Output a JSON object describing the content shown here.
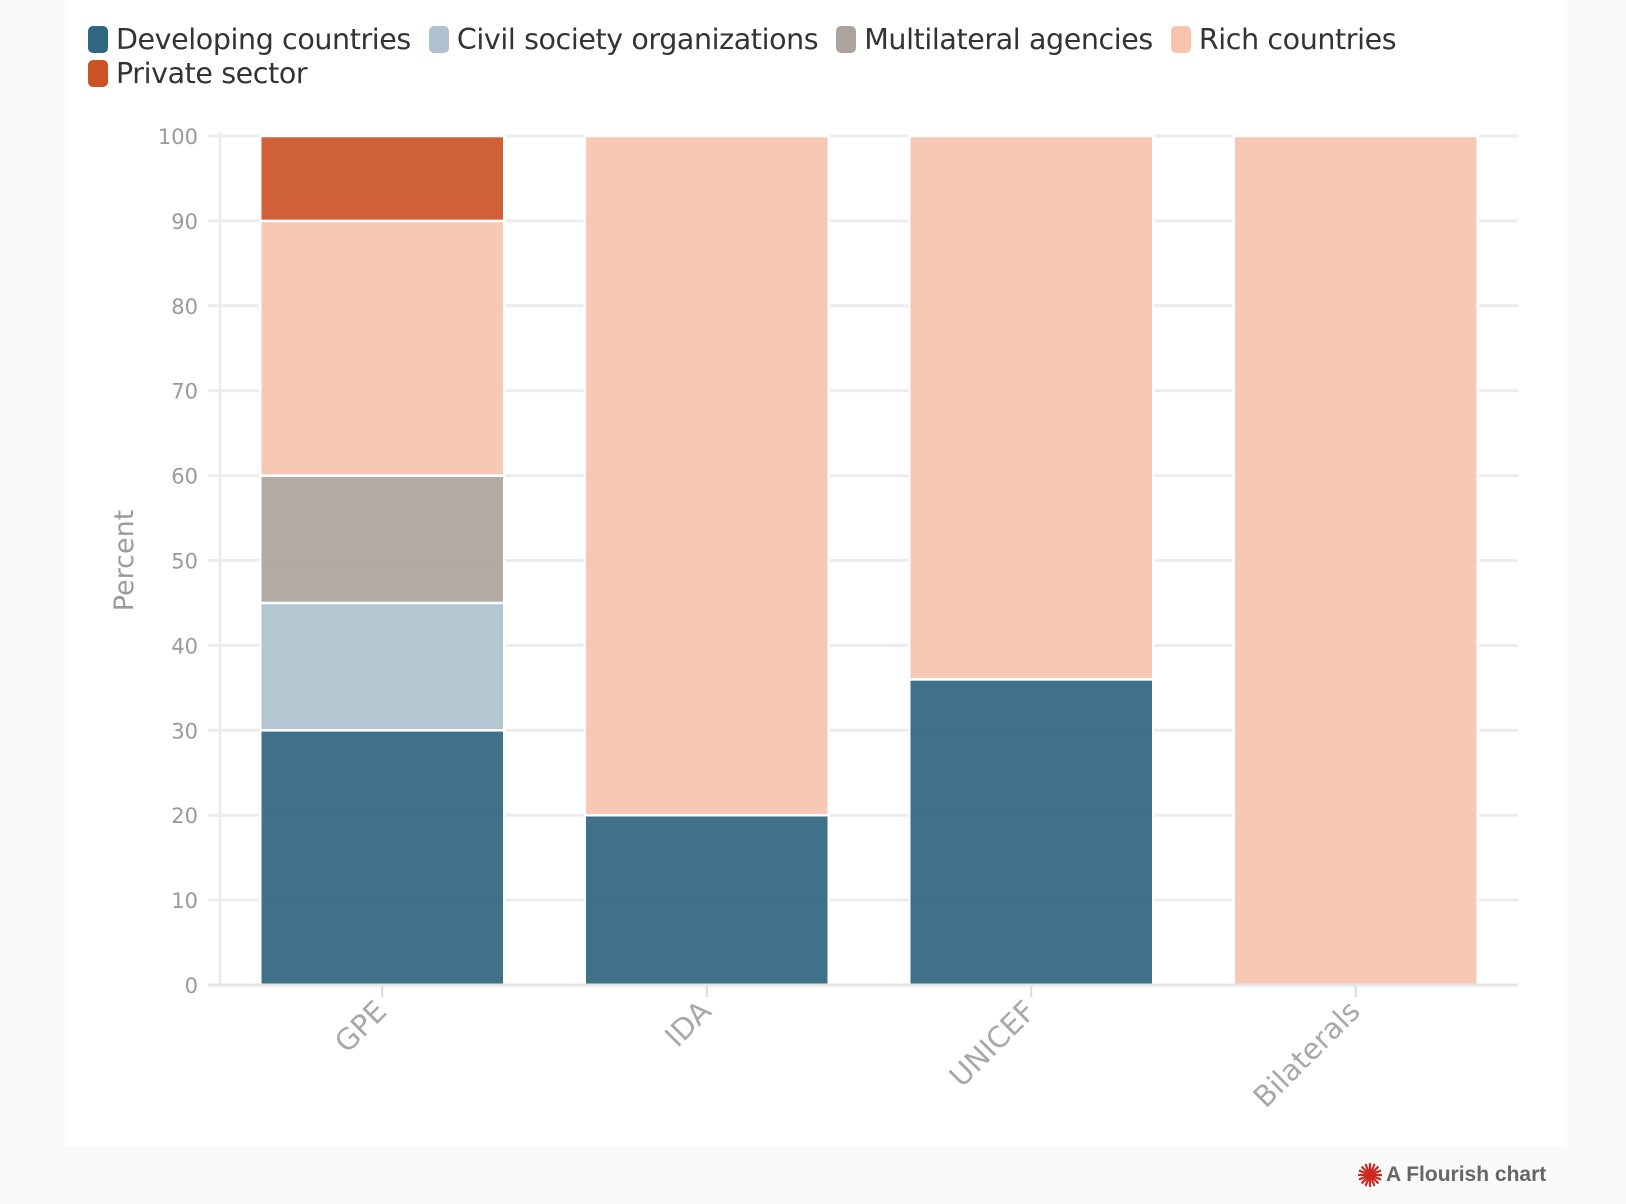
{
  "legend": [
    {
      "name": "Developing countries",
      "color": "#2f6680"
    },
    {
      "name": "Civil society organizations",
      "color": "#adc2ce"
    },
    {
      "name": "Multilateral agencies",
      "color": "#aba39d"
    },
    {
      "name": "Rich countries",
      "color": "#f6c3ad"
    },
    {
      "name": "Private sector",
      "color": "#cc5226"
    }
  ],
  "credit": "A Flourish chart",
  "chart_data": {
    "type": "bar",
    "stacked": true,
    "categories": [
      "GPE",
      "IDA",
      "UNICEF",
      "Bilaterals"
    ],
    "series": [
      {
        "name": "Developing countries",
        "color": "#2f6680",
        "values": [
          30,
          20,
          36,
          0
        ]
      },
      {
        "name": "Civil society organizations",
        "color": "#adc2ce",
        "values": [
          15,
          0,
          0,
          0
        ]
      },
      {
        "name": "Multilateral agencies",
        "color": "#aba39d",
        "values": [
          15,
          0,
          0,
          0
        ]
      },
      {
        "name": "Rich countries",
        "color": "#f6c3ad",
        "values": [
          30,
          80,
          64,
          100
        ]
      },
      {
        "name": "Private sector",
        "color": "#cc5226",
        "values": [
          10,
          0,
          0,
          0
        ]
      }
    ],
    "ylabel": "Percent",
    "ylim": [
      0,
      100
    ],
    "yticks": [
      0,
      10,
      20,
      30,
      40,
      50,
      60,
      70,
      80,
      90,
      100
    ],
    "grid": true,
    "legend_position": "top-left"
  }
}
